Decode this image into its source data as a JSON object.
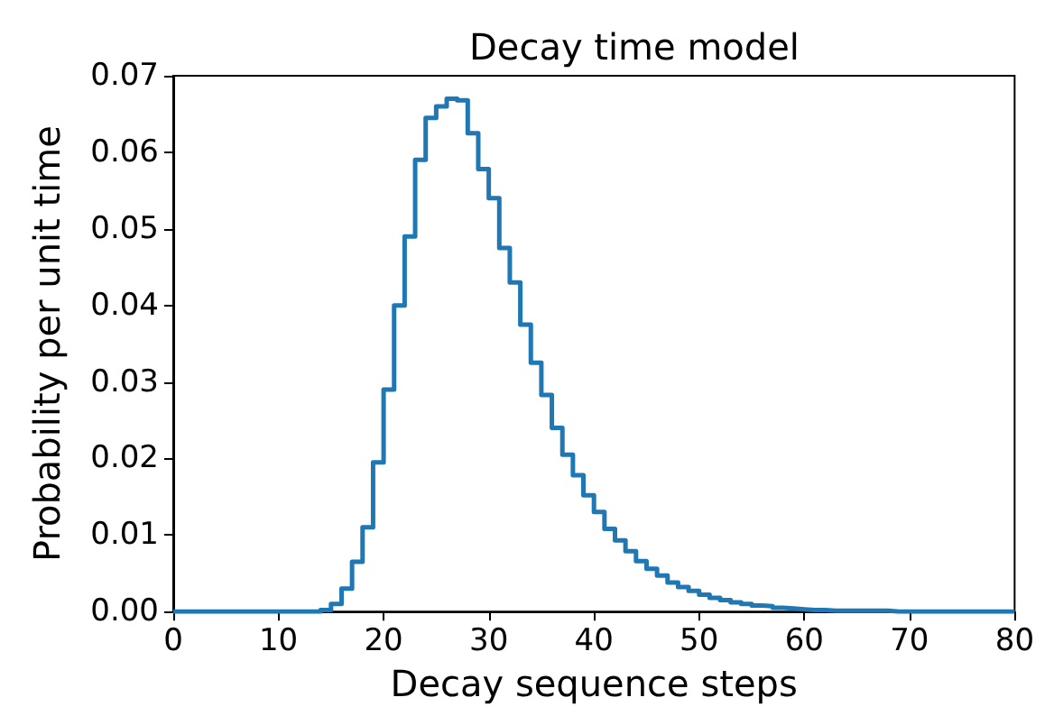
{
  "chart_data": {
    "type": "histogram",
    "title": "Decay time model",
    "xlabel": "Decay sequence steps",
    "ylabel": "Probability per unit time",
    "color": "#1f77b4",
    "bins": [
      0,
      1,
      2,
      3,
      4,
      5,
      6,
      7,
      8,
      9,
      10,
      11,
      12,
      13,
      14,
      15,
      16,
      17,
      18,
      19,
      20,
      21,
      22,
      23,
      24,
      25,
      26,
      27,
      28,
      29,
      30,
      31,
      32,
      33,
      34,
      35,
      36,
      37,
      38,
      39,
      40,
      41,
      42,
      43,
      44,
      45,
      46,
      47,
      48,
      49,
      50,
      51,
      52,
      53,
      54,
      55,
      56,
      57,
      58,
      59,
      60,
      61,
      62,
      63,
      64,
      65,
      66,
      67,
      68,
      69,
      70,
      71,
      72,
      73,
      74,
      75,
      76,
      77,
      78,
      79,
      80
    ],
    "values": [
      0,
      0,
      0,
      0,
      0,
      0,
      0,
      0,
      0,
      0,
      0,
      0,
      0,
      0,
      0.0002,
      0.001,
      0.003,
      0.0065,
      0.011,
      0.0195,
      0.029,
      0.04,
      0.049,
      0.059,
      0.0645,
      0.066,
      0.067,
      0.0668,
      0.0625,
      0.0578,
      0.054,
      0.0475,
      0.043,
      0.0375,
      0.0325,
      0.0283,
      0.024,
      0.0205,
      0.0178,
      0.0152,
      0.013,
      0.0108,
      0.0093,
      0.0079,
      0.0066,
      0.0056,
      0.0047,
      0.0038,
      0.0032,
      0.0027,
      0.0022,
      0.0018,
      0.0015,
      0.0012,
      0.001,
      0.0008,
      0.0007,
      0.0005,
      0.0004,
      0.0003,
      0.0002,
      0.0002,
      0.0001,
      0.0001,
      0.0001,
      0.0001,
      0.0001,
      0.0001,
      0,
      0,
      0,
      0,
      0,
      0,
      0,
      0,
      0,
      0,
      0,
      0
    ],
    "xlim": [
      0,
      80
    ],
    "xticks": [
      0,
      10,
      20,
      30,
      40,
      50,
      60,
      70,
      80
    ],
    "ylim": [
      0,
      0.07
    ],
    "yticks": [
      {
        "value": 0,
        "label": "0.00"
      },
      {
        "value": 0.01,
        "label": "0.01"
      },
      {
        "value": 0.02,
        "label": "0.02"
      },
      {
        "value": 0.03,
        "label": "0.03"
      },
      {
        "value": 0.04,
        "label": "0.04"
      },
      {
        "value": 0.05,
        "label": "0.05"
      },
      {
        "value": 0.06,
        "label": "0.06"
      },
      {
        "value": 0.07,
        "label": "0.07"
      }
    ],
    "grid": false
  }
}
